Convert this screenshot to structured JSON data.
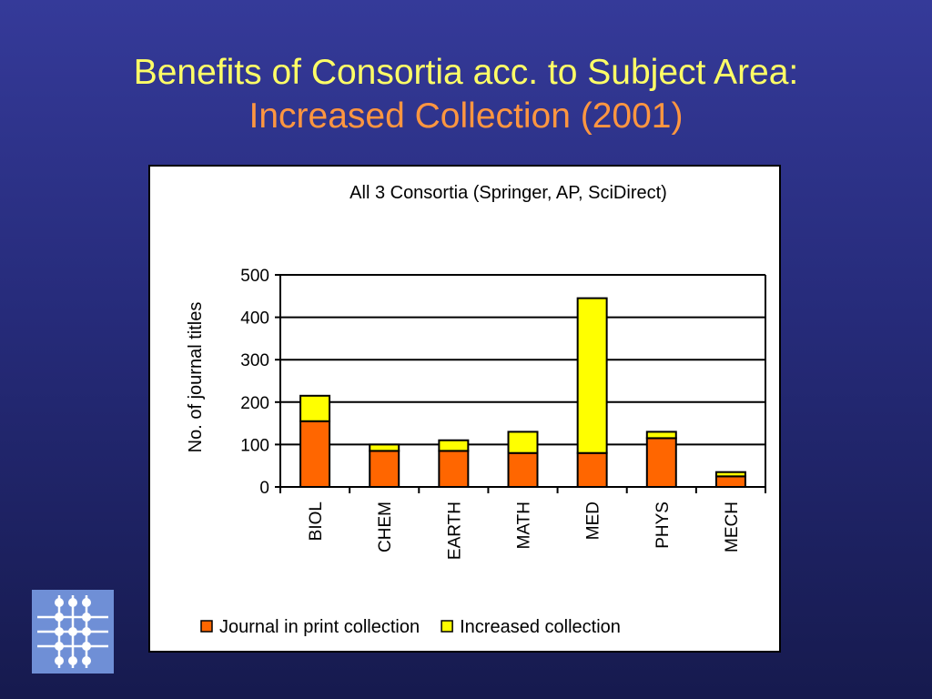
{
  "slide": {
    "title_line1": "Benefits of Consortia acc. to Subject Area:",
    "title_line2": "Increased Collection (2001)"
  },
  "colors": {
    "background_top": "#353a99",
    "background_bottom": "#161a4e",
    "title_primary": "#ffff66",
    "title_secondary": "#ff9640",
    "series_print": "#ff6600",
    "series_increased": "#ffff00"
  },
  "logo": {
    "icon": "circuit-logo-icon"
  },
  "chart_data": {
    "type": "bar",
    "stacked": true,
    "title": "All 3 Consortia (Springer, AP, SciDirect)",
    "xlabel": "",
    "ylabel": "No. of journal titles",
    "ylim": [
      0,
      500
    ],
    "yticks": [
      "0",
      "100",
      "200",
      "300",
      "400",
      "500"
    ],
    "categories": [
      "BIOL",
      "CHEM",
      "EARTH",
      "MATH",
      "MED",
      "PHYS",
      "MECH"
    ],
    "series": [
      {
        "name": "Journal in print collection",
        "color": "#ff6600",
        "values": [
          155,
          85,
          85,
          80,
          80,
          115,
          25
        ]
      },
      {
        "name": "Increased collection",
        "color": "#ffff00",
        "values": [
          60,
          15,
          25,
          50,
          365,
          15,
          10
        ]
      }
    ],
    "grid": true,
    "legend_position": "bottom"
  }
}
